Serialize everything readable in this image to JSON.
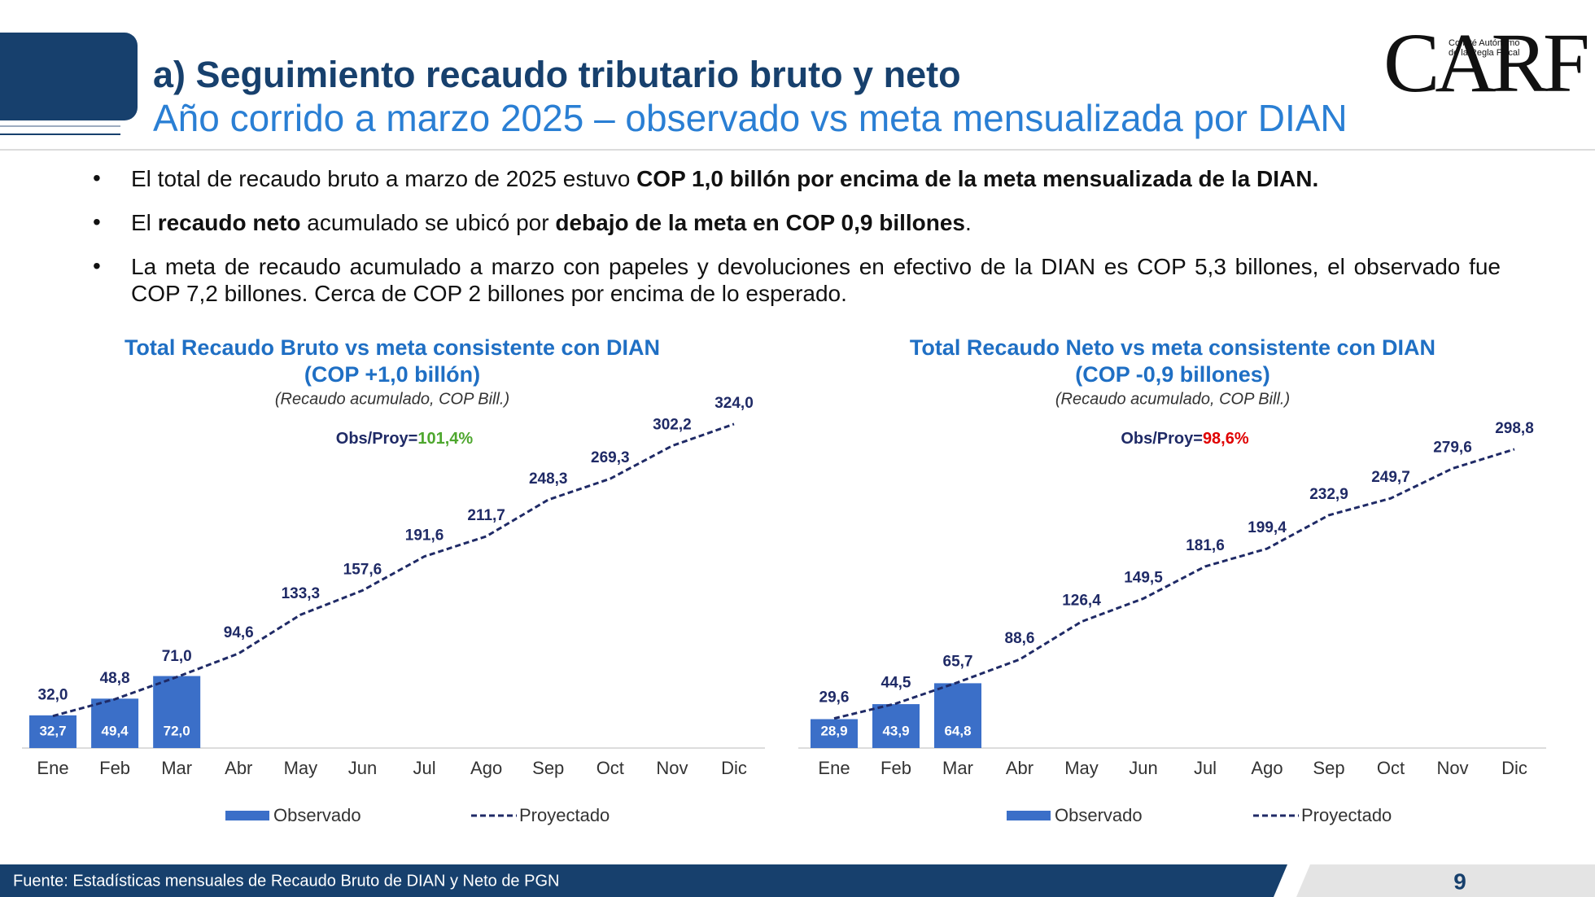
{
  "header": {
    "title": "a) Seguimiento recaudo tributario bruto y neto",
    "subtitle": "Año corrido a marzo 2025 – observado vs meta mensualizada por DIAN",
    "logo": "CARF",
    "logo_lines": [
      "Comité Autónomo",
      "de la Regla Fiscal"
    ]
  },
  "bullets": [
    [
      {
        "text": "El total de recaudo bruto a marzo de 2025 estuvo ",
        "bold": false
      },
      {
        "text": "COP 1,0 billón por encima de la meta mensualizada de la DIAN.",
        "bold": true
      }
    ],
    [
      {
        "text": "El ",
        "bold": false
      },
      {
        "text": "recaudo neto",
        "bold": true
      },
      {
        "text": " acumulado se ubicó por ",
        "bold": false
      },
      {
        "text": "debajo de la meta en COP 0,9 billones",
        "bold": true
      },
      {
        "text": ".",
        "bold": false
      }
    ],
    [
      {
        "text": "La meta de recaudo acumulado a marzo con papeles y devoluciones en efectivo de la DIAN es COP 5,3 billones, el observado fue COP 7,2 billones. Cerca de COP 2 billones por encima de lo esperado.",
        "bold": false
      }
    ]
  ],
  "chart_data": [
    {
      "type": "combo",
      "title": "Total Recaudo Bruto vs meta consistente con DIAN",
      "subtitle": "(COP +1,0 billón)",
      "note": "(Recaudo acumulado, COP Bill.)",
      "annotation": "Obs/Proy=",
      "annotation_value": "101,4%",
      "annotation_color": "#4ea72e",
      "categories": [
        "Ene",
        "Feb",
        "Mar",
        "Abr",
        "May",
        "Jun",
        "Jul",
        "Ago",
        "Sep",
        "Oct",
        "Nov",
        "Dic"
      ],
      "ylim": [
        0,
        350
      ],
      "series": [
        {
          "name": "Observado",
          "type": "bar",
          "color": "#3b6fc8",
          "values": [
            32.7,
            49.4,
            72.0,
            null,
            null,
            null,
            null,
            null,
            null,
            null,
            null,
            null
          ],
          "value_labels": [
            "32,7",
            "49,4",
            "72,0",
            null,
            null,
            null,
            null,
            null,
            null,
            null,
            null,
            null
          ]
        },
        {
          "name": "Proyectado",
          "type": "line",
          "color": "#1f2a66",
          "dashed": true,
          "values": [
            32.0,
            48.8,
            71.0,
            94.6,
            133.3,
            157.6,
            191.6,
            211.7,
            248.3,
            269.3,
            302.2,
            324.0
          ],
          "value_labels": [
            "32,0",
            "48,8",
            "71,0",
            "94,6",
            "133,3",
            "157,6",
            "191,6",
            "211,7",
            "248,3",
            "269,3",
            "302,2",
            "324,0"
          ]
        }
      ]
    },
    {
      "type": "combo",
      "title": "Total Recaudo Neto vs meta consistente con DIAN",
      "subtitle": "(COP -0,9 billones)",
      "note": "(Recaudo acumulado, COP Bill.)",
      "annotation": "Obs/Proy=",
      "annotation_value": "98,6%",
      "annotation_color": "#e00000",
      "categories": [
        "Ene",
        "Feb",
        "Mar",
        "Abr",
        "May",
        "Jun",
        "Jul",
        "Ago",
        "Sep",
        "Oct",
        "Nov",
        "Dic"
      ],
      "ylim": [
        0,
        350
      ],
      "series": [
        {
          "name": "Observado",
          "type": "bar",
          "color": "#3b6fc8",
          "values": [
            28.9,
            43.9,
            64.8,
            null,
            null,
            null,
            null,
            null,
            null,
            null,
            null,
            null
          ],
          "value_labels": [
            "28,9",
            "43,9",
            "64,8",
            null,
            null,
            null,
            null,
            null,
            null,
            null,
            null,
            null
          ]
        },
        {
          "name": "Proyectado",
          "type": "line",
          "color": "#1f2a66",
          "dashed": true,
          "values": [
            29.6,
            44.5,
            65.7,
            88.6,
            126.4,
            149.5,
            181.6,
            199.4,
            232.9,
            249.7,
            279.6,
            298.8
          ],
          "value_labels": [
            "29,6",
            "44,5",
            "65,7",
            "88,6",
            "126,4",
            "149,5",
            "181,6",
            "199,4",
            "232,9",
            "249,7",
            "279,6",
            "298,8"
          ]
        }
      ]
    }
  ],
  "footer": {
    "source": "Fuente: Estadísticas mensuales de Recaudo Bruto de DIAN y Neto de PGN",
    "page": "9"
  }
}
